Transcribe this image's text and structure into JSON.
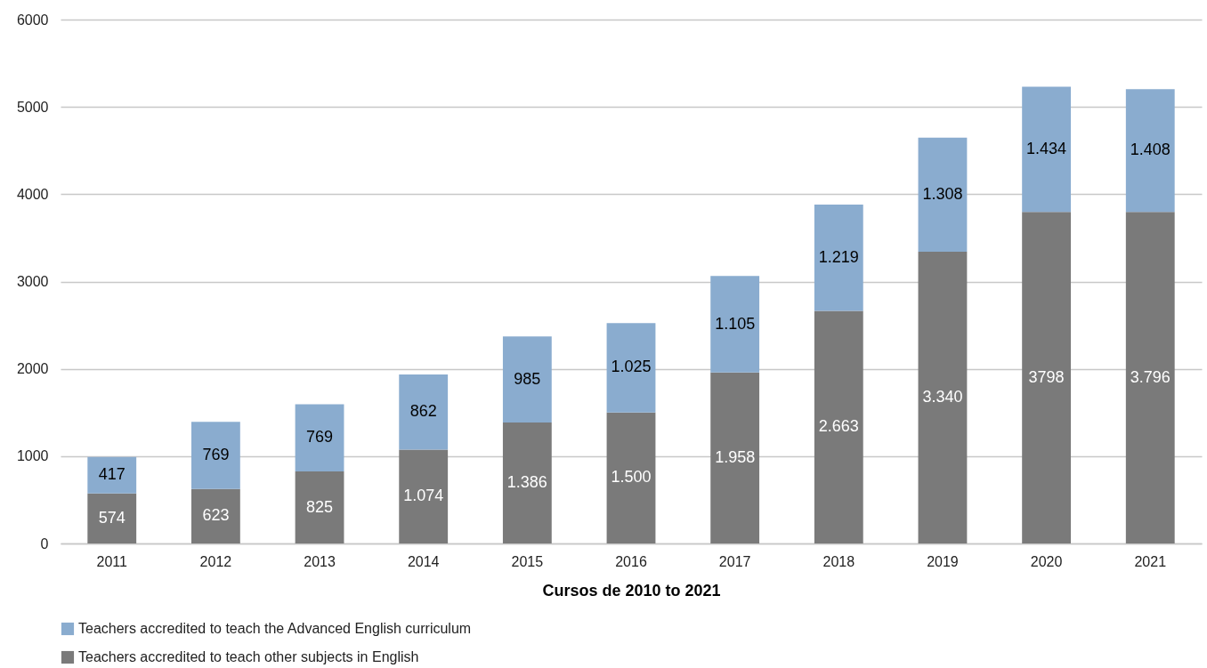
{
  "chart_data": {
    "type": "bar",
    "stacked": true,
    "xlabel": "Cursos de 2010 to 2021",
    "categories": [
      "2011",
      "2012",
      "2013",
      "2014",
      "2015",
      "2016",
      "2017",
      "2018",
      "2019",
      "2020",
      "2021"
    ],
    "series": [
      {
        "name": "Teachers accredited to teach other subjects in English",
        "color": "#7a7a7a",
        "values": [
          574,
          623,
          825,
          1074,
          1386,
          1500,
          1958,
          2663,
          3340,
          3798,
          3796
        ],
        "value_labels": [
          "574",
          "623",
          "825",
          "1.074",
          "1.386",
          "1.500",
          "1.958",
          "2.663",
          "3.340",
          "3798",
          "3.796"
        ]
      },
      {
        "name": "Teachers accredited to teach the Advanced English curriculum",
        "color": "#8aaccf",
        "values": [
          417,
          769,
          769,
          862,
          985,
          1025,
          1105,
          1219,
          1308,
          1434,
          1408
        ],
        "value_labels": [
          "417",
          "769",
          "769",
          "862",
          "985",
          "1.025",
          "1.105",
          "1.219",
          "1.308",
          "1.434",
          "1.408"
        ]
      }
    ],
    "ylim": [
      0,
      6000
    ],
    "yticks": [
      0,
      1000,
      2000,
      3000,
      4000,
      5000,
      6000
    ],
    "grid": "y",
    "legend": "bottom"
  }
}
